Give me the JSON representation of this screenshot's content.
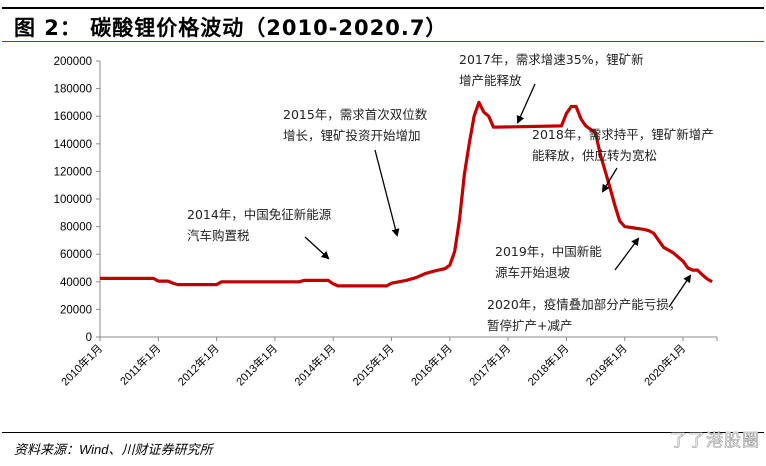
{
  "header": {
    "title": "图 2： 碳酸锂价格波动（2010-2020.7）"
  },
  "footer": {
    "source": "资料来源：Wind、川财证券研究所",
    "watermark": "了了港股圈"
  },
  "colors": {
    "line": "#c00000",
    "axis": "#888888",
    "title_rule": "#b22222"
  },
  "annotations": [
    {
      "id": "a2014",
      "line1": "2014年，中国免征新能源",
      "line2": "汽车购置税"
    },
    {
      "id": "a2015",
      "line1": "2015年，需求首次双位数",
      "line2": "增长，锂矿投资开始增加"
    },
    {
      "id": "a2017",
      "line1": "2017年，需求增速35%，锂矿新",
      "line2": "增产能释放"
    },
    {
      "id": "a2018",
      "line1": "2018年，需求持平，锂矿新增产",
      "line2": "能释放，供应转为宽松"
    },
    {
      "id": "a2019",
      "line1": "2019年，中国新能",
      "line2": "源车开始退坡"
    },
    {
      "id": "a2020",
      "line1": "2020年，疫情叠加部分产能亏损，",
      "line2": "暂停扩产+减产"
    }
  ],
  "chart_data": {
    "type": "line",
    "title": "碳酸锂价格波动（2010-2020.7）",
    "xlabel": "",
    "ylabel": "",
    "ylim": [
      0,
      200000
    ],
    "yticks": [
      "0",
      "20000",
      "40000",
      "60000",
      "80000",
      "100000",
      "120000",
      "140000",
      "160000",
      "180000",
      "200000"
    ],
    "xticks": [
      "2010年1月",
      "2011年1月",
      "2012年1月",
      "2013年1月",
      "2014年1月",
      "2015年1月",
      "2016年1月",
      "2017年1月",
      "2018年1月",
      "2019年1月",
      "2020年1月"
    ],
    "grid": false,
    "legend": "none",
    "series": [
      {
        "name": "碳酸锂价格",
        "points": [
          [
            "2010-01",
            42500
          ],
          [
            "2010-12",
            42500
          ],
          [
            "2011-01",
            40500
          ],
          [
            "2011-03",
            40500
          ],
          [
            "2011-04",
            39000
          ],
          [
            "2011-05",
            38000
          ],
          [
            "2012-01",
            38000
          ],
          [
            "2012-02",
            40000
          ],
          [
            "2013-06",
            40000
          ],
          [
            "2013-07",
            41000
          ],
          [
            "2013-12",
            41000
          ],
          [
            "2014-01",
            38500
          ],
          [
            "2014-02",
            37000
          ],
          [
            "2014-12",
            37000
          ],
          [
            "2015-01",
            39000
          ],
          [
            "2015-04",
            41000
          ],
          [
            "2015-06",
            43000
          ],
          [
            "2015-08",
            46000
          ],
          [
            "2015-10",
            48000
          ],
          [
            "2015-12",
            49500
          ],
          [
            "2016-01",
            52000
          ],
          [
            "2016-02",
            62000
          ],
          [
            "2016-03",
            85000
          ],
          [
            "2016-04",
            118000
          ],
          [
            "2016-05",
            140000
          ],
          [
            "2016-06",
            160000
          ],
          [
            "2016-07",
            170000
          ],
          [
            "2016-08",
            163000
          ],
          [
            "2016-09",
            160000
          ],
          [
            "2016-10",
            152000
          ],
          [
            "2017-12",
            153000
          ],
          [
            "2018-01",
            162000
          ],
          [
            "2018-02",
            167000
          ],
          [
            "2018-03",
            167000
          ],
          [
            "2018-04",
            158000
          ],
          [
            "2018-05",
            153000
          ],
          [
            "2018-07",
            148000
          ],
          [
            "2018-08",
            132000
          ],
          [
            "2018-09",
            120000
          ],
          [
            "2018-10",
            108000
          ],
          [
            "2018-11",
            95000
          ],
          [
            "2018-12",
            84000
          ],
          [
            "2019-01",
            80000
          ],
          [
            "2019-03",
            79000
          ],
          [
            "2019-05",
            78000
          ],
          [
            "2019-06",
            77000
          ],
          [
            "2019-07",
            75000
          ],
          [
            "2019-08",
            70000
          ],
          [
            "2019-09",
            65000
          ],
          [
            "2019-11",
            61000
          ],
          [
            "2019-12",
            58000
          ],
          [
            "2020-01",
            55000
          ],
          [
            "2020-02",
            50000
          ],
          [
            "2020-03",
            48500
          ],
          [
            "2020-04",
            48500
          ],
          [
            "2020-05",
            45000
          ],
          [
            "2020-06",
            42000
          ],
          [
            "2020-07",
            40000
          ]
        ]
      }
    ]
  }
}
